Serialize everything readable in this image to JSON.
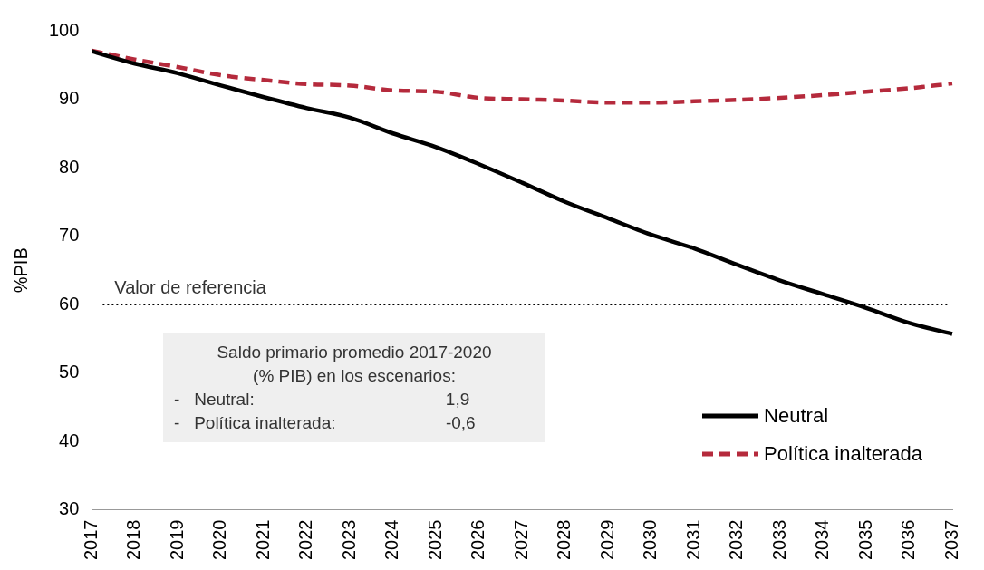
{
  "chart_data": {
    "type": "line",
    "ylabel": "%PIB",
    "categories": [
      "2017",
      "2018",
      "2019",
      "2020",
      "2021",
      "2022",
      "2023",
      "2024",
      "2025",
      "2026",
      "2027",
      "2028",
      "2029",
      "2030",
      "2031",
      "2032",
      "2033",
      "2034",
      "2035",
      "2036",
      "2037"
    ],
    "series": [
      {
        "name": "Neutral",
        "color": "#000000",
        "line_style": "solid",
        "values": [
          97,
          95.2,
          93.8,
          92,
          90.3,
          88.7,
          87.3,
          85,
          83,
          80.5,
          77.8,
          75,
          72.6,
          70.2,
          68.2,
          65.8,
          63.5,
          61.5,
          59.5,
          57.3,
          55.7
        ]
      },
      {
        "name": "Política inalterada",
        "color": "#b52a3c",
        "line_style": "dashed",
        "values": [
          97.1,
          95.8,
          94.7,
          93.5,
          92.8,
          92.2,
          92,
          91.3,
          91.1,
          90.2,
          90,
          89.8,
          89.5,
          89.5,
          89.7,
          89.9,
          90.2,
          90.6,
          91.1,
          91.6,
          92.3
        ]
      }
    ],
    "ylim": [
      30,
      100
    ],
    "yticks": [
      30,
      40,
      50,
      60,
      70,
      80,
      90,
      100
    ],
    "grid": false,
    "legend": "right",
    "marker": "none",
    "ref_lines": [
      {
        "axis": "y",
        "value": 60,
        "label": "Valor de referencia",
        "color": "#000000",
        "line_style": "dotted"
      }
    ],
    "annotations": [
      "Saldo primario promedio 2017-2020",
      "(% PIB) en los escenarios:",
      "-   Neutral:                                        1,9",
      "-   Política inalterada:                       -0,6"
    ]
  }
}
